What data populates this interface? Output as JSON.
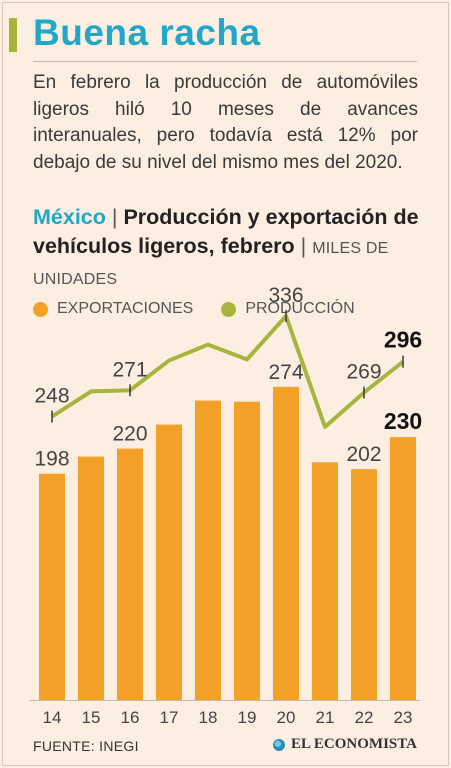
{
  "header": {
    "title": "Buena racha",
    "intro": "En febrero la producción de automóviles ligeros hiló 10 meses de avances interanuales, pero todavía está 12% por debajo de su nivel del mismo mes del 2020."
  },
  "chart_head": {
    "country": "México",
    "separator": "|",
    "title": "Producción y exportación de vehículos ligeros, febrero",
    "units": "MILES DE UNIDADES"
  },
  "legend": {
    "exports_label": "EXPORTACIONES",
    "production_label": "PRODUCCIÓN"
  },
  "colors": {
    "accent_title": "#22a7c9",
    "exports": "#f5a026",
    "production": "#a7b53c",
    "background": "#fdeee2"
  },
  "chart_data": {
    "type": "bar",
    "categories": [
      "14",
      "15",
      "16",
      "17",
      "18",
      "19",
      "20",
      "21",
      "22",
      "23"
    ],
    "series": [
      {
        "name": "EXPORTACIONES",
        "type": "bar",
        "values": [
          198,
          213,
          220,
          241,
          262,
          261,
          274,
          208,
          202,
          230
        ],
        "labels": [
          "198",
          "",
          "220",
          "",
          "",
          "",
          "274",
          "",
          "202",
          "230"
        ],
        "bold_labels": [
          "230"
        ]
      },
      {
        "name": "PRODUCCIÓN",
        "type": "line",
        "values": [
          248,
          270,
          271,
          297,
          311,
          298,
          336,
          239,
          269,
          296
        ],
        "labels": [
          "248",
          "",
          "271",
          "",
          "",
          "",
          "336",
          "",
          "269",
          "296"
        ],
        "bold_labels": [
          "296"
        ]
      }
    ],
    "ylim": [
      0,
      350
    ],
    "grid": false,
    "legend_position": "top-left"
  },
  "footer": {
    "source": "FUENTE: INEGI",
    "brand": "EL ECONOMISTA"
  }
}
